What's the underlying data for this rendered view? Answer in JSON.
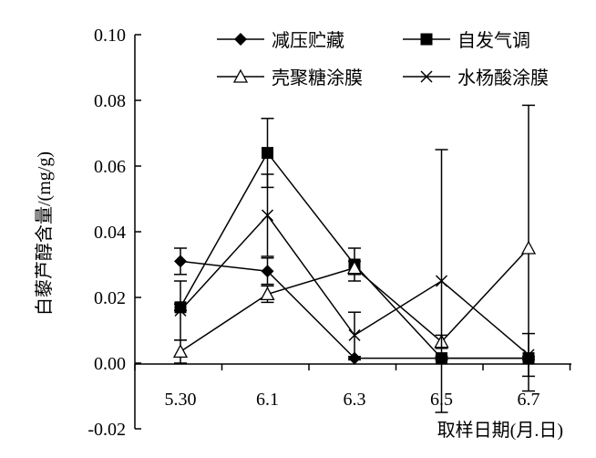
{
  "chart_data": {
    "type": "line",
    "xlabel": "取样日期(月.日)",
    "ylabel": "白藜芦醇含量/(mg/g)",
    "categories": [
      "5.30",
      "6.1",
      "6.3",
      "6.5",
      "6.7"
    ],
    "ylim": [
      -0.02,
      0.1
    ],
    "yticks": [
      "-0.02",
      "0.00",
      "0.02",
      "0.04",
      "0.06",
      "0.08",
      "0.10"
    ],
    "legend_position": "top",
    "series": [
      {
        "name": "减压贮藏",
        "marker": "diamond-filled",
        "values": [
          0.031,
          0.028,
          0.0015,
          0.0015,
          0.0015
        ],
        "errors": [
          0.004,
          0.004,
          0.0005,
          0.0005,
          0.0005
        ]
      },
      {
        "name": "自发气调",
        "marker": "square-filled",
        "values": [
          0.017,
          0.064,
          0.03,
          0.0015,
          0.0015
        ],
        "errors": [
          0.001,
          0.0105,
          0.005,
          0.0005,
          0.0005
        ]
      },
      {
        "name": "壳聚糖涂膜",
        "marker": "triangle-open",
        "values": [
          0.0035,
          0.021,
          0.029,
          0.0065,
          0.035
        ],
        "errors": [
          0.0035,
          0.0025,
          0.002,
          0.002,
          0.0435
        ]
      },
      {
        "name": "水杨酸涂膜",
        "marker": "x",
        "values": [
          0.016,
          0.045,
          0.0085,
          0.025,
          0.0025
        ],
        "errors": [
          0.009,
          0.0125,
          0.007,
          0.04,
          0.0065
        ]
      }
    ]
  }
}
